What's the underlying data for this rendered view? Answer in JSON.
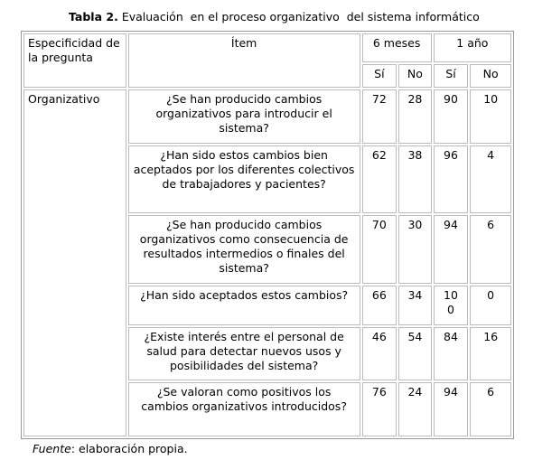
{
  "title": {
    "label": "Tabla 2.",
    "text": "Evaluación  en el proceso organizativo  del sistema informático"
  },
  "table": {
    "headers": {
      "specificity": "Especificidad de la pregunta",
      "item": "Ítem",
      "period_1": "6 meses",
      "period_2": "1 año",
      "yes_1": "Sí",
      "no_1": "No",
      "yes_2": "Sí",
      "no_2": "No"
    },
    "group": "Organizativo",
    "rows": [
      {
        "item": "¿Se han producido cambios organizativos para introducir el sistema?",
        "values": [
          72,
          28,
          90,
          10
        ]
      },
      {
        "item": "¿Han sido estos cambios bien aceptados por los diferentes colectivos de trabajadores y pacientes?",
        "values": [
          62,
          38,
          96,
          4
        ]
      },
      {
        "item": "¿Se han producido cambios organizativos como consecuencia de resultados intermedios o finales del sistema?",
        "values": [
          70,
          30,
          94,
          6
        ]
      },
      {
        "item": "¿Han sido aceptados estos cambios?",
        "values": [
          66,
          34,
          100,
          0
        ]
      },
      {
        "item": "¿Existe interés entre el personal de salud para detectar nuevos usos y posibilidades  del sistema?",
        "values": [
          46,
          54,
          84,
          16
        ]
      },
      {
        "item": "¿Se valoran como positivos los cambios organizativos introducidos?",
        "values": [
          76,
          24,
          94,
          6
        ]
      }
    ]
  },
  "footer": {
    "source_label": "Fuente",
    "source_text": ": elaboración propia."
  }
}
